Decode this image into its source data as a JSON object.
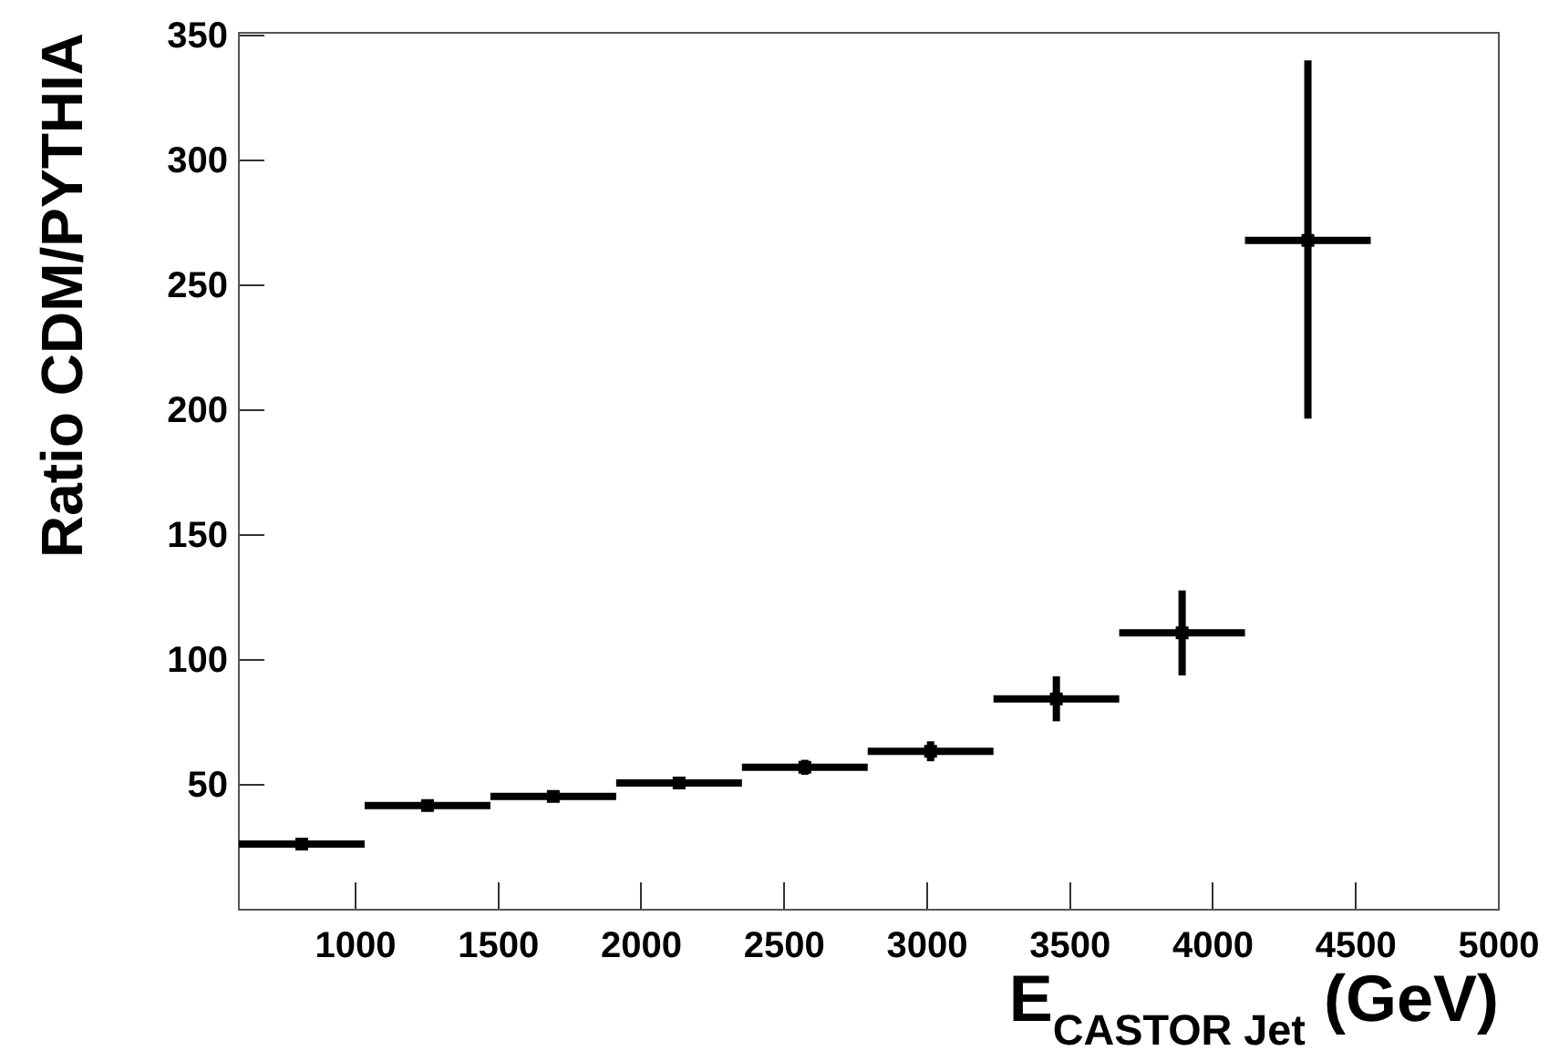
{
  "chart_data": {
    "type": "scatter",
    "xlabel": "E$_{CASTOR Jet}$ (GeV)",
    "ylabel": "Ratio CDM/PYTHIA",
    "x": [
      812,
      1252,
      1692,
      2132,
      2572,
      3012,
      3452,
      3892,
      4332
    ],
    "series": [
      {
        "color": "#000000",
        "values": [
          26.3,
          41.7,
          45.3,
          50.7,
          57.0,
          63.4,
          84.4,
          110.8,
          267.9
        ],
        "errors": [
          null,
          null,
          null,
          null,
          3,
          4,
          9,
          17,
          [
            196.6,
            340
          ]
        ],
        "xerrors": [
          220,
          220,
          220,
          220,
          220,
          220,
          220,
          220,
          220
        ]
      }
    ],
    "marker": "square",
    "xlim": [
      592,
      5000
    ],
    "ylim": [
      0,
      351
    ],
    "xticks": [
      1000,
      1500,
      2000,
      2500,
      3000,
      3500,
      4000,
      4500,
      5000
    ],
    "yticks": [
      50,
      100,
      150,
      200,
      250,
      300,
      350
    ],
    "grid": false
  }
}
